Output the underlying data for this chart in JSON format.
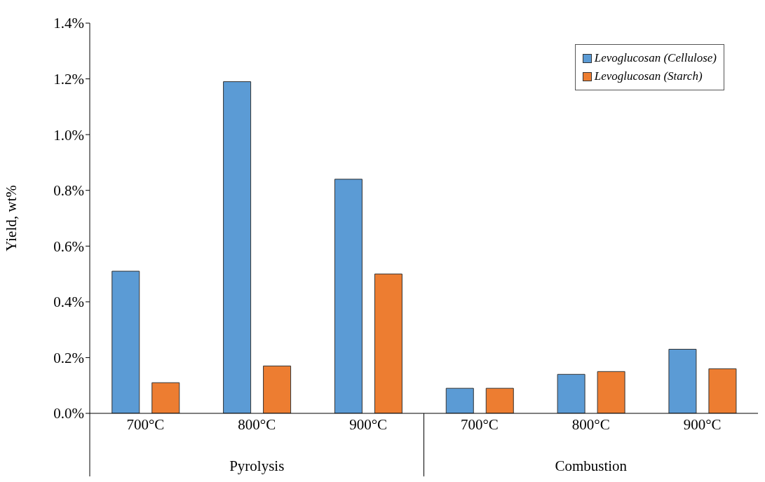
{
  "chart_data": {
    "type": "bar",
    "ylabel": "Yield, wt%",
    "categories": [
      "700°C",
      "800°C",
      "900°C",
      "700°C",
      "800°C",
      "900°C"
    ],
    "series": [
      {
        "name": "Levoglucosan (Cellulose)",
        "color": "#5b9bd5",
        "values": [
          0.51,
          1.19,
          0.84,
          0.09,
          0.14,
          0.23
        ]
      },
      {
        "name": "Levoglucosan (Starch)",
        "color": "#ed7d31",
        "values": [
          0.11,
          0.17,
          0.5,
          0.09,
          0.15,
          0.16
        ]
      }
    ],
    "ylim": [
      0,
      1.4
    ],
    "yticks": [
      {
        "value": 0,
        "label": "0.0%"
      },
      {
        "value": 0.2,
        "label": "0.2%"
      },
      {
        "value": 0.4,
        "label": "0.4%"
      },
      {
        "value": 0.6,
        "label": "0.6%"
      },
      {
        "value": 0.8,
        "label": "0.8%"
      },
      {
        "value": 1.0,
        "label": "1.0%"
      },
      {
        "value": 1.2,
        "label": "1.2%"
      },
      {
        "value": 1.4,
        "label": "1.4%"
      }
    ],
    "annotations": [
      "Pyrolysis",
      "Combustion"
    ],
    "legend": "top right",
    "grid": false
  }
}
